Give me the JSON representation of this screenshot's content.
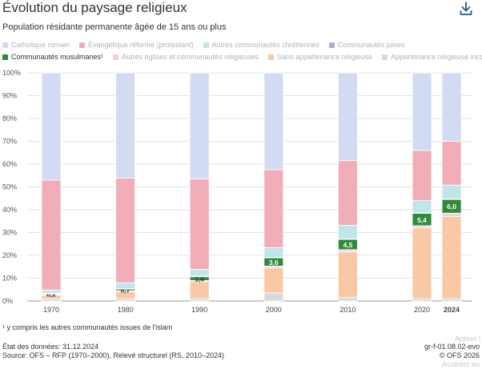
{
  "header": {
    "title": "Évolution du paysage religieux",
    "subtitle": "Population résidante permanente âgée de 15 ans ou plus",
    "download_icon": "download-icon"
  },
  "chart_data": {
    "type": "bar",
    "stacked": true,
    "categories": [
      "1970",
      "1980",
      "1990",
      "2000",
      "2010",
      "2020",
      "2024"
    ],
    "highlighted_category": "2024",
    "ylim": [
      0,
      100
    ],
    "yticks": [
      "0%",
      "10%",
      "20%",
      "30%",
      "40%",
      "50%",
      "60%",
      "70%",
      "80%",
      "90%",
      "100%"
    ],
    "grid": true,
    "legend_position": "top",
    "series": [
      {
        "name": "Appartenance religieuse inconnue",
        "color": "#d9d9d9",
        "active": false,
        "values": [
          1.0,
          1.0,
          1.0,
          3.5,
          1.5,
          1.0,
          1.0
        ]
      },
      {
        "name": "Sans appartenance religieuse",
        "color": "#f9c9a5",
        "active": false,
        "values": [
          1.5,
          3.0,
          7.5,
          11.0,
          20.0,
          31.0,
          36.0
        ]
      },
      {
        "name": "Autres églises et communautés religieuses",
        "color": "#f5cfe0",
        "active": false,
        "values": [
          0.5,
          0.5,
          0.5,
          0.8,
          1.0,
          1.0,
          1.5
        ]
      },
      {
        "name": "Communautés musulmanes¹",
        "color": "#2e8b3a",
        "active": true,
        "values": [
          0.2,
          0.7,
          1.6,
          3.6,
          4.5,
          5.4,
          6.0
        ],
        "labels": [
          "0,2",
          "0,7",
          "1,6",
          "3,6",
          "4,5",
          "5,4",
          "6,0"
        ]
      },
      {
        "name": "Communautés juives",
        "color": "#b0a8df",
        "active": false,
        "values": [
          0.3,
          0.3,
          0.3,
          0.2,
          0.2,
          0.2,
          0.2
        ]
      },
      {
        "name": "Autres communautés chrétiennes",
        "color": "#bfe6ea",
        "active": false,
        "values": [
          1.3,
          2.5,
          3.0,
          4.3,
          6.0,
          5.4,
          6.1
        ]
      },
      {
        "name": "Évangélique réformé (protestant)",
        "color": "#f1aeb8",
        "active": false,
        "values": [
          48.2,
          45.9,
          39.6,
          34.2,
          28.3,
          22.0,
          19.2
        ]
      },
      {
        "name": "Catholique romain",
        "color": "#d3dbf2",
        "active": false,
        "values": [
          47.0,
          46.1,
          46.5,
          42.4,
          38.5,
          34.0,
          30.0
        ]
      }
    ]
  },
  "legend_rows": [
    [
      "Catholique romain",
      "Évangélique réformé (protestant)",
      "Autres communautés chrétiennes",
      "Communautés juives"
    ],
    [
      "Communautés musulmanes¹",
      "Autres églises et communautés religieuses",
      "Sans appartenance religieuse",
      "Appartenance religieuse inconnue"
    ]
  ],
  "footnote": "¹ y compris les autres communautés issues de l'islam",
  "footer": {
    "state": "État des données: 31.12.2024",
    "source": "Source: OFS – RFP (1970–2000), Relevé structurel (RS, 2010–2024)",
    "code": "gr-f-01.08.02-evo",
    "copyright": "© OFS 2026"
  },
  "watermark": {
    "line1": "Activer l",
    "line2": "Accédez au"
  }
}
